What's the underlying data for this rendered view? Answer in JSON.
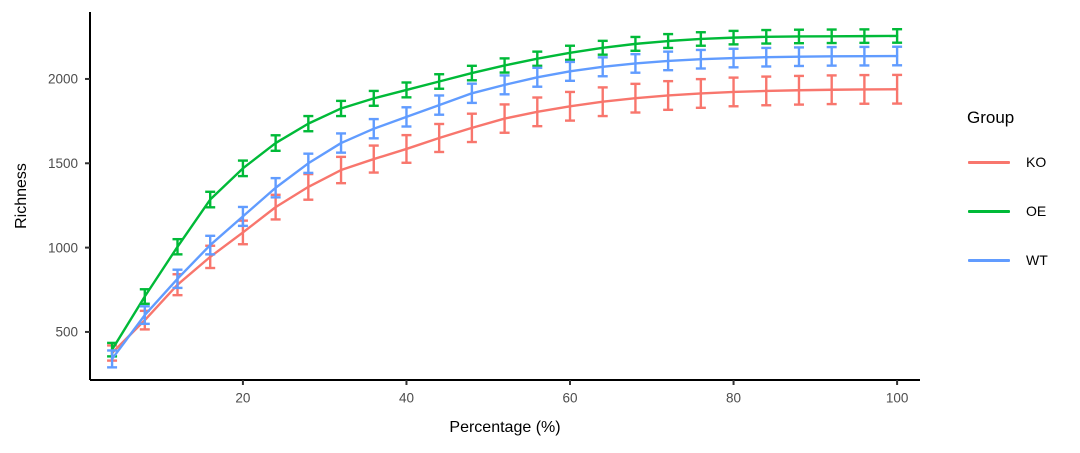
{
  "chart_data": {
    "type": "line",
    "title": "",
    "xlabel": "Percentage (%)",
    "ylabel": "Richness",
    "legend_title": "Group",
    "legend_position": "right",
    "grid": false,
    "error_bars": true,
    "x_ticks": [
      20,
      40,
      60,
      80,
      100
    ],
    "y_ticks": [
      500,
      1000,
      1500,
      2000
    ],
    "xlim": [
      1.3,
      102.8
    ],
    "ylim": [
      215,
      2397
    ],
    "x": [
      4,
      8,
      12,
      16,
      20,
      24,
      28,
      32,
      36,
      40,
      44,
      48,
      52,
      56,
      60,
      64,
      68,
      72,
      76,
      80,
      84,
      88,
      92,
      96,
      100
    ],
    "series": [
      {
        "name": "KO",
        "color": "#F8766D",
        "values": [
          375,
          570,
          780,
          945,
          1090,
          1240,
          1360,
          1460,
          1525,
          1585,
          1650,
          1710,
          1765,
          1805,
          1838,
          1865,
          1886,
          1902,
          1914,
          1923,
          1929,
          1933,
          1936,
          1938,
          1939
        ],
        "errors": [
          45,
          55,
          62,
          66,
          70,
          73,
          76,
          78,
          80,
          82,
          83,
          84,
          84,
          85,
          85,
          85,
          85,
          85,
          85,
          85,
          85,
          85,
          85,
          85,
          85
        ]
      },
      {
        "name": "OE",
        "color": "#00BA38",
        "values": [
          395,
          710,
          1005,
          1285,
          1470,
          1620,
          1735,
          1825,
          1885,
          1935,
          1985,
          2035,
          2080,
          2120,
          2155,
          2185,
          2208,
          2225,
          2237,
          2245,
          2250,
          2252,
          2253,
          2254,
          2255
        ],
        "errors": [
          40,
          43,
          45,
          46,
          46,
          46,
          45,
          45,
          44,
          44,
          43,
          43,
          42,
          42,
          42,
          41,
          41,
          41,
          40,
          40,
          40,
          40,
          40,
          40,
          40
        ]
      },
      {
        "name": "WT",
        "color": "#619CFF",
        "values": [
          340,
          600,
          815,
          1015,
          1185,
          1355,
          1500,
          1620,
          1705,
          1775,
          1845,
          1915,
          1965,
          2010,
          2045,
          2072,
          2092,
          2107,
          2117,
          2124,
          2129,
          2132,
          2134,
          2135,
          2136
        ],
        "errors": [
          50,
          52,
          54,
          55,
          56,
          57,
          57,
          57,
          57,
          57,
          57,
          57,
          56,
          56,
          56,
          56,
          55,
          55,
          55,
          55,
          55,
          55,
          55,
          55,
          55
        ]
      }
    ],
    "colors": {
      "background": "#ffffff",
      "axis_line": "#000000",
      "tick_mark": "#333333",
      "tick_label": "#4d4d4d",
      "text": "#000000"
    }
  }
}
